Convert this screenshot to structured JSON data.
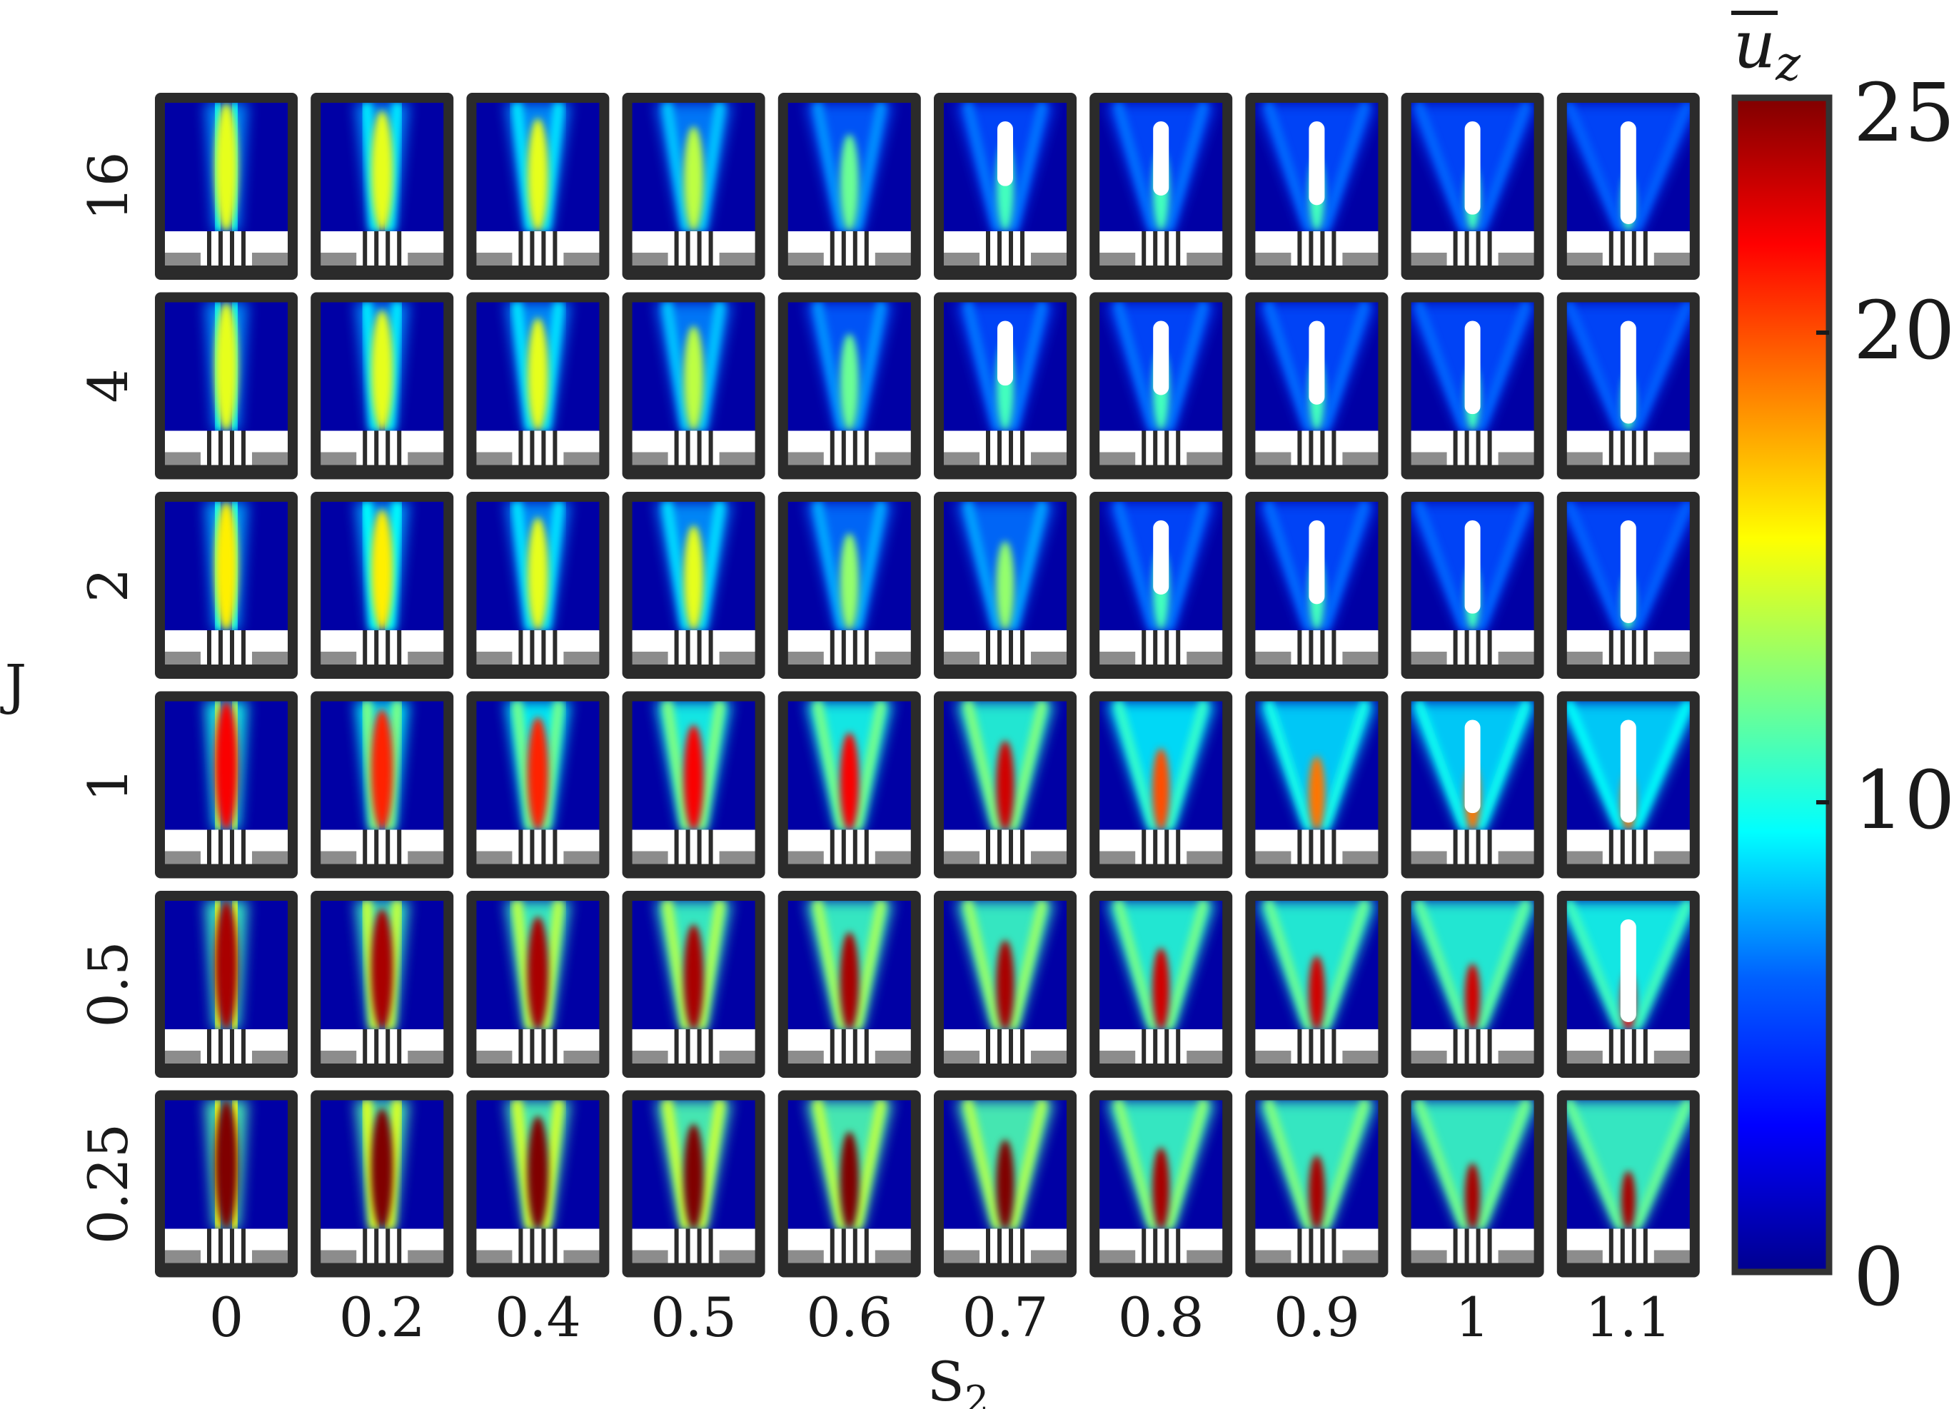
{
  "chart_data": {
    "type": "heatmap",
    "title": "",
    "xlabel": "S",
    "xlabel_sub": "2",
    "ylabel": "J",
    "x_categories": [
      "0",
      "0.2",
      "0.4",
      "0.5",
      "0.6",
      "0.7",
      "0.8",
      "0.9",
      "1",
      "1.1"
    ],
    "y_categories_top_to_bottom": [
      "16",
      "4",
      "2",
      "1",
      "0.5",
      "0.25"
    ],
    "colorbar": {
      "label": "u",
      "label_sub": "z",
      "label_overline": true,
      "colormap": "jet",
      "range": [
        0,
        25
      ],
      "ticks": [
        "0",
        "10",
        "20",
        "25"
      ],
      "colors": [
        "#00008f",
        "#0000ff",
        "#0080ff",
        "#00ffff",
        "#80ff80",
        "#ffff00",
        "#ff8000",
        "#ff0000",
        "#800000"
      ]
    },
    "panel_peak_u_z_by_row": {
      "16": [
        15,
        15,
        15,
        14,
        12,
        11,
        11,
        11,
        11,
        11
      ],
      "4": [
        15,
        15,
        15,
        14,
        12,
        11,
        11,
        11,
        11,
        11
      ],
      "2": [
        16,
        16,
        15,
        15,
        13,
        13,
        11,
        11,
        11,
        11
      ],
      "1": [
        22,
        21,
        21,
        22,
        22,
        23,
        20,
        19,
        19,
        19
      ],
      "0.5": [
        24,
        24,
        24,
        24,
        24,
        24,
        23,
        23,
        23,
        22
      ],
      "0.25": [
        25,
        25,
        25,
        25,
        25,
        25,
        24,
        24,
        24,
        24
      ]
    },
    "recirculation_zone_shown": {
      "16": [
        false,
        false,
        false,
        false,
        false,
        true,
        true,
        true,
        true,
        true
      ],
      "4": [
        false,
        false,
        false,
        false,
        false,
        true,
        true,
        true,
        true,
        true
      ],
      "2": [
        false,
        false,
        false,
        false,
        false,
        false,
        true,
        true,
        true,
        true
      ],
      "1": [
        false,
        false,
        false,
        false,
        false,
        false,
        false,
        false,
        true,
        true
      ],
      "0.5": [
        false,
        false,
        false,
        false,
        false,
        false,
        false,
        false,
        false,
        true
      ],
      "0.25": [
        false,
        false,
        false,
        false,
        false,
        false,
        false,
        false,
        false,
        false
      ]
    }
  }
}
